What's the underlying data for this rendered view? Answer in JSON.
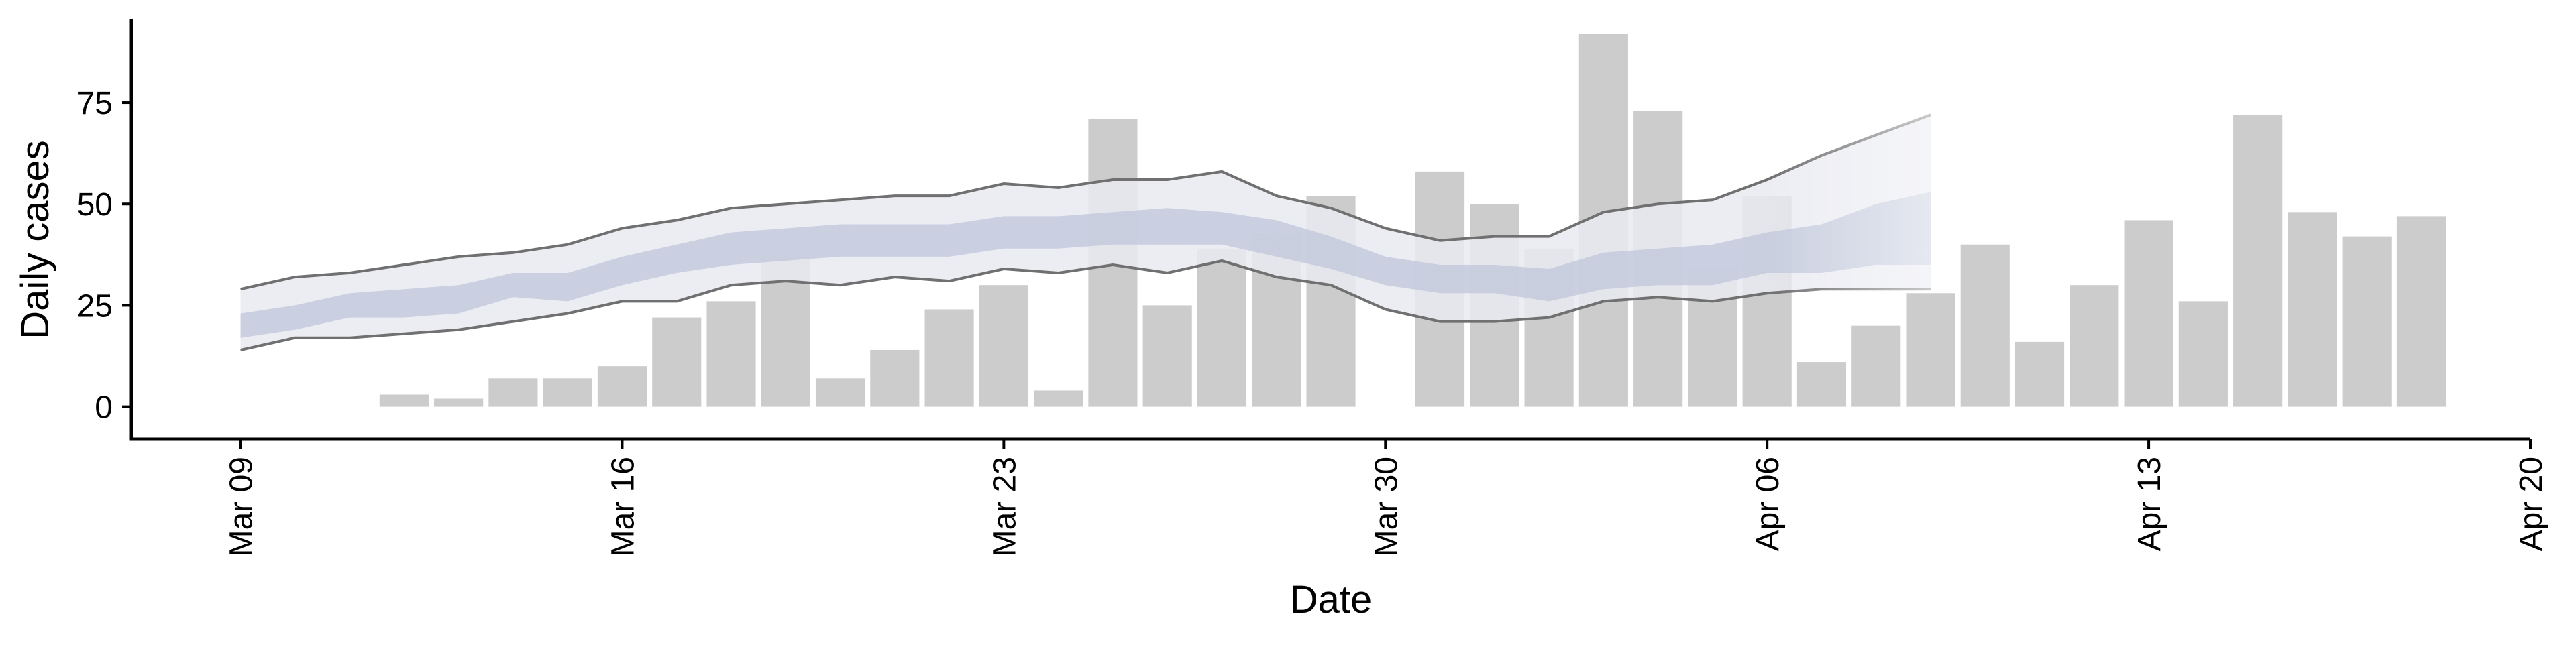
{
  "chart_data": {
    "type": "bar",
    "title": "",
    "xlabel": "Date",
    "ylabel": "Daily cases",
    "x_axis": {
      "range": [
        "2020-03-07",
        "2020-04-20"
      ],
      "tick_dates": [
        "2020-03-09",
        "2020-03-16",
        "2020-03-23",
        "2020-03-30",
        "2020-04-06",
        "2020-04-13",
        "2020-04-20"
      ],
      "tick_labels": [
        "Mar 09",
        "Mar 16",
        "Mar 23",
        "Mar 30",
        "Apr 06",
        "Apr 13",
        "Apr 20"
      ],
      "label_rotation": "vertical"
    },
    "y_axis": {
      "range": [
        -8,
        97
      ],
      "ticks": [
        0,
        25,
        50,
        75
      ],
      "tick_labels": [
        "0",
        "25",
        "50",
        "75"
      ]
    },
    "grid": false,
    "legend": "none",
    "colors": {
      "bars": "#cccccc",
      "band_outer": "#e9eaf1",
      "band_inner": "#c2c9dc",
      "bound_lines": "#707070",
      "axis": "#000000"
    },
    "bars": {
      "dates": [
        "2020-03-12",
        "2020-03-13",
        "2020-03-14",
        "2020-03-15",
        "2020-03-16",
        "2020-03-17",
        "2020-03-18",
        "2020-03-19",
        "2020-03-20",
        "2020-03-21",
        "2020-03-22",
        "2020-03-23",
        "2020-03-24",
        "2020-03-25",
        "2020-03-26",
        "2020-03-27",
        "2020-03-28",
        "2020-03-29",
        "2020-03-31",
        "2020-04-01",
        "2020-04-02",
        "2020-04-03",
        "2020-04-04",
        "2020-04-05",
        "2020-04-06",
        "2020-04-07",
        "2020-04-08",
        "2020-04-09",
        "2020-04-10",
        "2020-04-11",
        "2020-04-12",
        "2020-04-13",
        "2020-04-14",
        "2020-04-15",
        "2020-04-16",
        "2020-04-17",
        "2020-04-18"
      ],
      "values": [
        3,
        2,
        7,
        7,
        10,
        22,
        26,
        37,
        7,
        14,
        24,
        30,
        4,
        71,
        25,
        39,
        43,
        52,
        58,
        50,
        39,
        92,
        73,
        34,
        52,
        11,
        20,
        28,
        40,
        16,
        30,
        46,
        26,
        72,
        48,
        42,
        47
      ]
    },
    "estimate_bands": {
      "dates": [
        "2020-03-09",
        "2020-03-10",
        "2020-03-11",
        "2020-03-12",
        "2020-03-13",
        "2020-03-14",
        "2020-03-15",
        "2020-03-16",
        "2020-03-17",
        "2020-03-18",
        "2020-03-19",
        "2020-03-20",
        "2020-03-21",
        "2020-03-22",
        "2020-03-23",
        "2020-03-24",
        "2020-03-25",
        "2020-03-26",
        "2020-03-27",
        "2020-03-28",
        "2020-03-29",
        "2020-03-30",
        "2020-03-31",
        "2020-04-01",
        "2020-04-02",
        "2020-04-03",
        "2020-04-04",
        "2020-04-05",
        "2020-04-06",
        "2020-04-07",
        "2020-04-08",
        "2020-04-09"
      ],
      "outer_upper": [
        29,
        32,
        33,
        35,
        37,
        38,
        40,
        44,
        46,
        49,
        50,
        51,
        52,
        52,
        55,
        54,
        56,
        56,
        58,
        52,
        49,
        44,
        41,
        42,
        42,
        48,
        50,
        51,
        56,
        62,
        67,
        72
      ],
      "outer_lower": [
        14,
        17,
        17,
        18,
        19,
        21,
        23,
        26,
        26,
        30,
        31,
        30,
        32,
        31,
        34,
        33,
        35,
        33,
        36,
        32,
        30,
        24,
        21,
        21,
        22,
        26,
        27,
        26,
        28,
        29,
        29,
        29
      ],
      "inner_upper": [
        23,
        25,
        28,
        29,
        30,
        33,
        33,
        37,
        40,
        43,
        44,
        45,
        45,
        45,
        47,
        47,
        48,
        49,
        48,
        46,
        42,
        37,
        35,
        35,
        34,
        38,
        39,
        40,
        43,
        45,
        50,
        53
      ],
      "inner_lower": [
        17,
        19,
        22,
        22,
        23,
        27,
        26,
        30,
        33,
        35,
        36,
        37,
        37,
        37,
        39,
        39,
        40,
        40,
        40,
        37,
        34,
        30,
        28,
        28,
        26,
        29,
        30,
        30,
        33,
        33,
        35,
        35
      ],
      "projection_start": "2020-04-06"
    }
  }
}
